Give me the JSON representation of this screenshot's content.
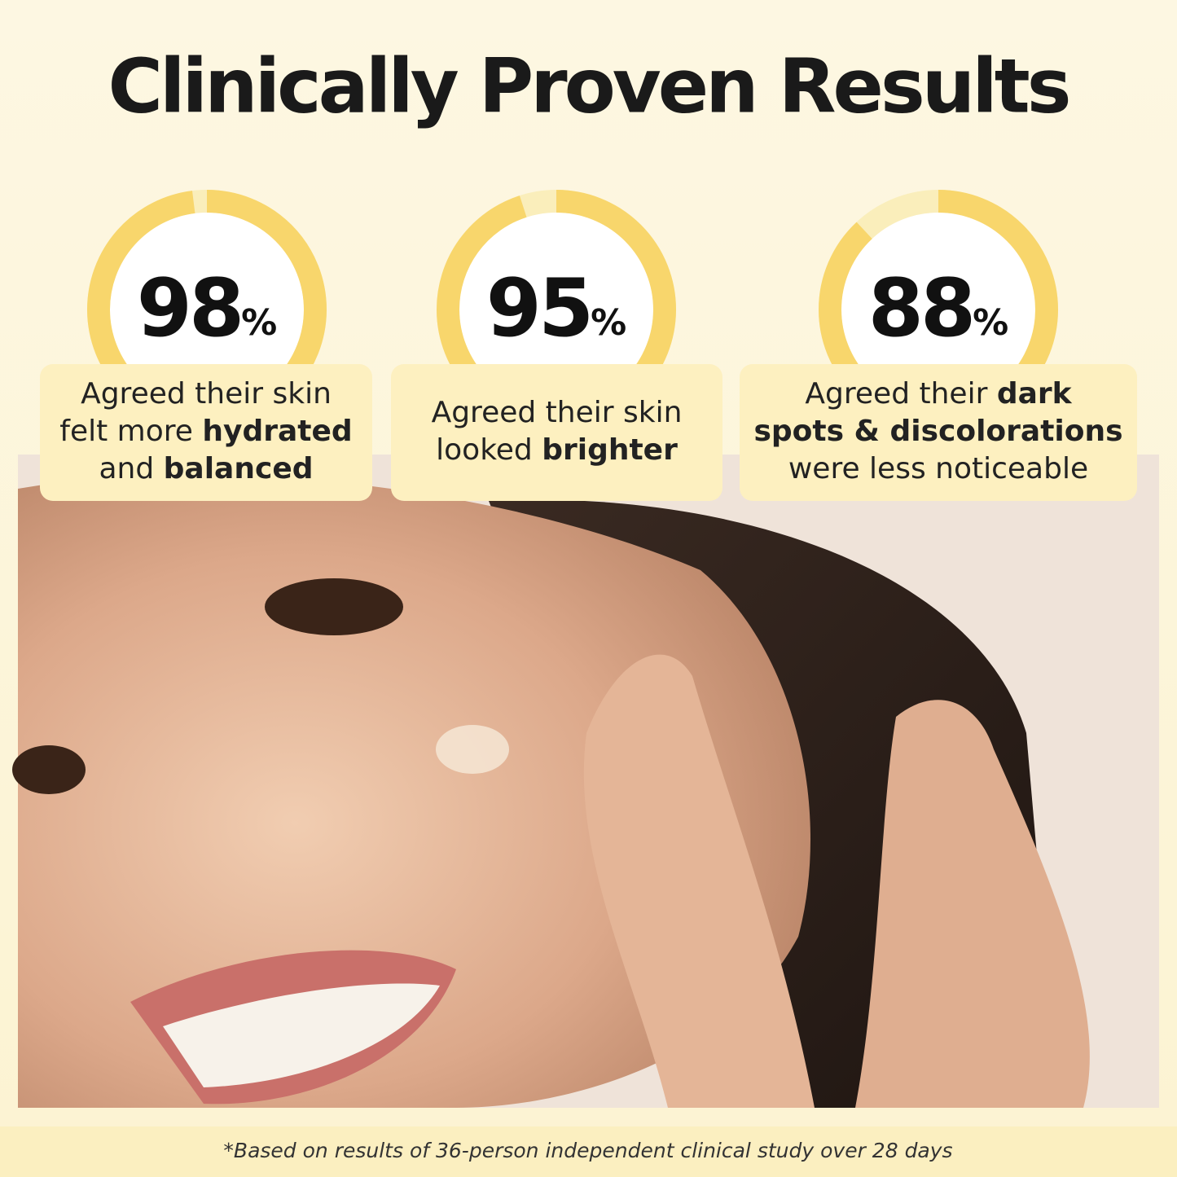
{
  "title": "Clinically Proven Results",
  "stats": [
    {
      "value": 98,
      "unit": "%",
      "lines": [
        [
          {
            "text": "Agreed their skin"
          }
        ],
        [
          {
            "text": "felt more "
          },
          {
            "text": "hydrated",
            "bold": true
          }
        ],
        [
          {
            "text": "and "
          },
          {
            "text": "balanced",
            "bold": true
          }
        ]
      ]
    },
    {
      "value": 95,
      "unit": "%",
      "lines": [
        [
          {
            "text": "Agreed their skin"
          }
        ],
        [
          {
            "text": "looked "
          },
          {
            "text": "brighter",
            "bold": true
          }
        ]
      ]
    },
    {
      "value": 88,
      "unit": "%",
      "lines": [
        [
          {
            "text": "Agreed their "
          },
          {
            "text": "dark",
            "bold": true
          }
        ],
        [
          {
            "text": "spots & discolorations",
            "bold": true
          }
        ],
        [
          {
            "text": "were less noticeable"
          }
        ]
      ]
    }
  ],
  "footnote": "*Based on results of 36-person independent clinical study over 28 days"
}
